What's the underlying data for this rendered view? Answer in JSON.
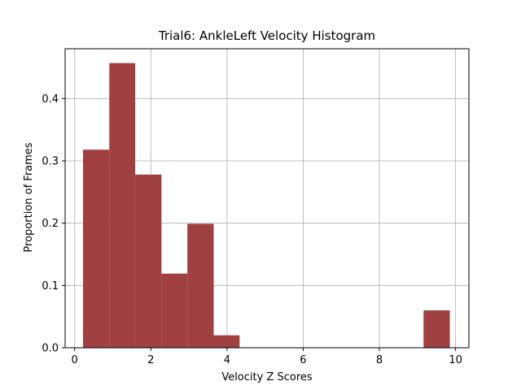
{
  "chart_data": {
    "type": "bar",
    "title": "Trial6: AnkleLeft Velocity Histogram",
    "xlabel": "Velocity Z Scores",
    "ylabel": "Proportion of Frames",
    "xlim": [
      -0.25,
      10.35
    ],
    "ylim": [
      0,
      0.48
    ],
    "xticks": [
      0,
      2,
      4,
      6,
      8,
      10
    ],
    "yticks": [
      0.0,
      0.1,
      0.2,
      0.3,
      0.4
    ],
    "xtick_labels": [
      "0",
      "2",
      "4",
      "6",
      "8",
      "10"
    ],
    "ytick_labels": [
      "0.0",
      "0.1",
      "0.2",
      "0.3",
      "0.4"
    ],
    "grid": true,
    "bar_color": "#a04040",
    "grid_color": "#b0b0b0",
    "bins": [
      {
        "x0": 0.22,
        "x1": 0.91,
        "value": 0.318
      },
      {
        "x0": 0.91,
        "x1": 1.59,
        "value": 0.457
      },
      {
        "x0": 1.59,
        "x1": 2.28,
        "value": 0.278
      },
      {
        "x0": 2.28,
        "x1": 2.96,
        "value": 0.119
      },
      {
        "x0": 2.96,
        "x1": 3.65,
        "value": 0.199
      },
      {
        "x0": 3.65,
        "x1": 4.33,
        "value": 0.02
      },
      {
        "x0": 9.16,
        "x1": 9.85,
        "value": 0.06
      }
    ]
  }
}
